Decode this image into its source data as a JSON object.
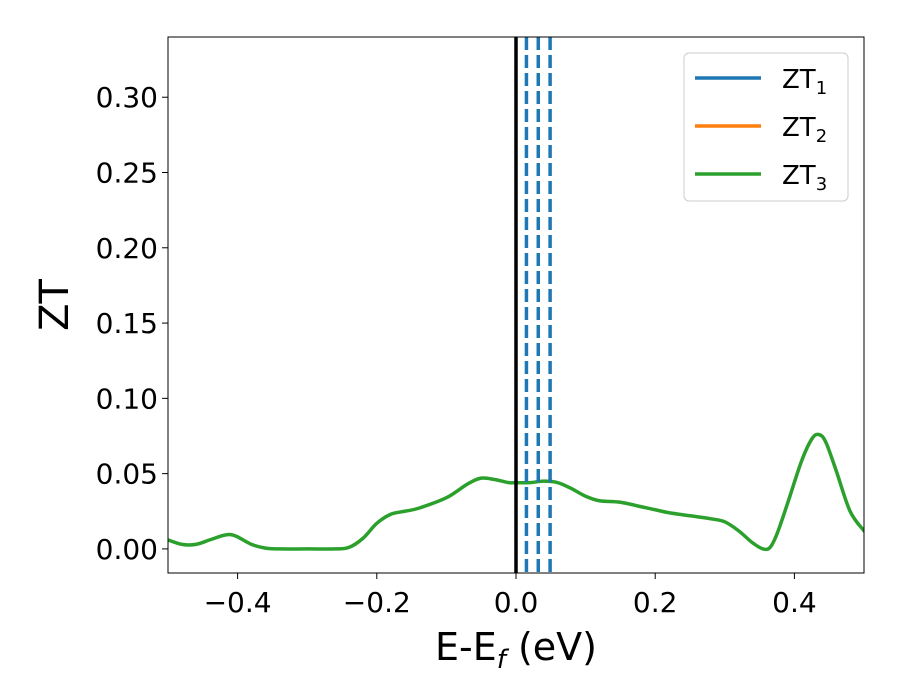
{
  "chart_data": {
    "type": "line",
    "xlabel": {
      "main": "E-E",
      "sub": "f",
      "unit": " (eV)"
    },
    "ylabel": "ZT",
    "xlim": [
      -0.5,
      0.5
    ],
    "ylim": [
      -0.016,
      0.34
    ],
    "xticks": [
      -0.4,
      -0.2,
      0.0,
      0.2,
      0.4
    ],
    "xtick_labels": [
      "−0.4",
      "−0.2",
      "0.0",
      "0.2",
      "0.4"
    ],
    "yticks": [
      0.0,
      0.05,
      0.1,
      0.15,
      0.2,
      0.25,
      0.3
    ],
    "ytick_labels": [
      "0.00",
      "0.05",
      "0.10",
      "0.15",
      "0.20",
      "0.25",
      "0.30"
    ],
    "legend_position": "top-right",
    "grid": false,
    "series": [
      {
        "name": "ZT",
        "sub": "1",
        "color": "#1f77b4"
      },
      {
        "name": "ZT",
        "sub": "2",
        "color": "#ff7f0e"
      },
      {
        "name": "ZT",
        "sub": "3",
        "color": "#2ca02c",
        "x": [
          -0.5,
          -0.48,
          -0.46,
          -0.44,
          -0.42,
          -0.41,
          -0.4,
          -0.38,
          -0.36,
          -0.34,
          -0.3,
          -0.26,
          -0.24,
          -0.22,
          -0.2,
          -0.18,
          -0.16,
          -0.14,
          -0.1,
          -0.07,
          -0.05,
          -0.03,
          -0.01,
          0.0,
          0.02,
          0.04,
          0.06,
          0.08,
          0.1,
          0.12,
          0.15,
          0.18,
          0.2,
          0.22,
          0.25,
          0.28,
          0.3,
          0.32,
          0.34,
          0.355,
          0.365,
          0.375,
          0.39,
          0.41,
          0.425,
          0.435,
          0.445,
          0.46,
          0.48,
          0.5
        ],
        "y": [
          0.006,
          0.003,
          0.003,
          0.006,
          0.009,
          0.0095,
          0.008,
          0.003,
          0.0005,
          0.0,
          0.0,
          0.0,
          0.001,
          0.007,
          0.017,
          0.023,
          0.025,
          0.027,
          0.034,
          0.043,
          0.047,
          0.046,
          0.044,
          0.044,
          0.044,
          0.045,
          0.044,
          0.04,
          0.035,
          0.032,
          0.031,
          0.028,
          0.026,
          0.024,
          0.022,
          0.02,
          0.018,
          0.012,
          0.004,
          0.0,
          0.001,
          0.01,
          0.03,
          0.058,
          0.073,
          0.076,
          0.071,
          0.052,
          0.025,
          0.012
        ]
      }
    ],
    "vlines": [
      {
        "x": 0.0,
        "color": "#000000",
        "style": "solid"
      },
      {
        "x": 0.015,
        "color": "#1f77b4",
        "style": "dashed"
      },
      {
        "x": 0.032,
        "color": "#1f77b4",
        "style": "dashed"
      },
      {
        "x": 0.049,
        "color": "#1f77b4",
        "style": "dashed"
      }
    ]
  }
}
